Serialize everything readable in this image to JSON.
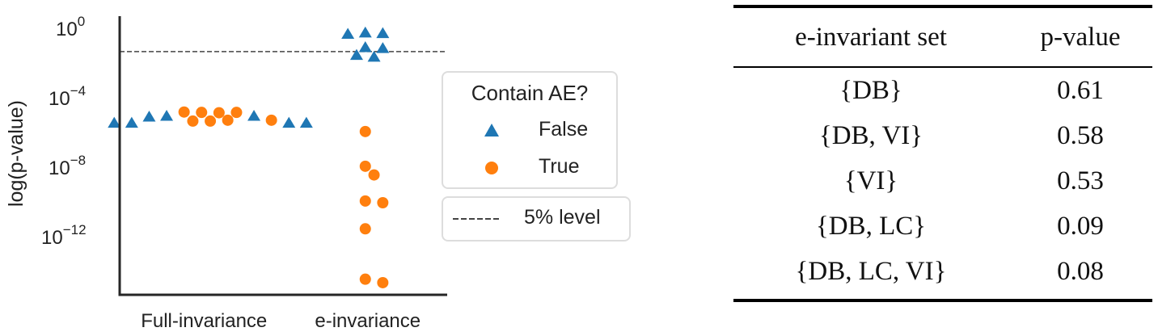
{
  "chart_data": [
    {
      "type": "scatter",
      "subtype": "swarm",
      "ylabel": "log(p-value)",
      "yscale": "log",
      "ylim_log10": [
        -15.3,
        0.74
      ],
      "yticks": [
        {
          "exp": 0,
          "base": "10",
          "sup": "0"
        },
        {
          "exp": -4,
          "base": "10",
          "sup": "−4"
        },
        {
          "exp": -8,
          "base": "10",
          "sup": "−8"
        },
        {
          "exp": -12,
          "base": "10",
          "sup": "−12"
        }
      ],
      "categories": [
        "Full-invariance",
        "e-invariance"
      ],
      "hue_title": "Contain AE?",
      "hue_levels": [
        {
          "label": "False",
          "marker": "triangle",
          "color": "#1f77b4"
        },
        {
          "label": "True",
          "marker": "circle",
          "color": "#ff7f0e"
        }
      ],
      "reference_line": {
        "value": 0.05,
        "label": "5% level",
        "style": "dashed",
        "color": "#444444"
      },
      "points": [
        {
          "category": "Full-invariance",
          "contain_ae": "True",
          "log10_p": -4.8
        },
        {
          "category": "Full-invariance",
          "contain_ae": "True",
          "log10_p": -4.82
        },
        {
          "category": "Full-invariance",
          "contain_ae": "True",
          "log10_p": -4.78
        },
        {
          "category": "Full-invariance",
          "contain_ae": "True",
          "log10_p": -4.8
        },
        {
          "category": "Full-invariance",
          "contain_ae": "False",
          "log10_p": -5.0
        },
        {
          "category": "Full-invariance",
          "contain_ae": "False",
          "log10_p": -5.0
        },
        {
          "category": "Full-invariance",
          "contain_ae": "False",
          "log10_p": -5.05
        },
        {
          "category": "Full-invariance",
          "contain_ae": "True",
          "log10_p": -5.3
        },
        {
          "category": "Full-invariance",
          "contain_ae": "True",
          "log10_p": -5.3
        },
        {
          "category": "Full-invariance",
          "contain_ae": "True",
          "log10_p": -5.25
        },
        {
          "category": "Full-invariance",
          "contain_ae": "True",
          "log10_p": -5.25
        },
        {
          "category": "Full-invariance",
          "contain_ae": "False",
          "log10_p": -5.4
        },
        {
          "category": "Full-invariance",
          "contain_ae": "False",
          "log10_p": -5.4
        },
        {
          "category": "Full-invariance",
          "contain_ae": "False",
          "log10_p": -5.4
        },
        {
          "category": "Full-invariance",
          "contain_ae": "False",
          "log10_p": -5.4
        },
        {
          "category": "e-invariance",
          "contain_ae": "False",
          "log10_p": -0.21
        },
        {
          "category": "e-invariance",
          "contain_ae": "False",
          "log10_p": -0.24
        },
        {
          "category": "e-invariance",
          "contain_ae": "False",
          "log10_p": -0.28
        },
        {
          "category": "e-invariance",
          "contain_ae": "False",
          "log10_p": -1.05
        },
        {
          "category": "e-invariance",
          "contain_ae": "False",
          "log10_p": -1.1
        },
        {
          "category": "e-invariance",
          "contain_ae": "False",
          "log10_p": -1.5
        },
        {
          "category": "e-invariance",
          "contain_ae": "False",
          "log10_p": -1.6
        },
        {
          "category": "e-invariance",
          "contain_ae": "True",
          "log10_p": -5.9
        },
        {
          "category": "e-invariance",
          "contain_ae": "True",
          "log10_p": -7.9
        },
        {
          "category": "e-invariance",
          "contain_ae": "True",
          "log10_p": -8.4
        },
        {
          "category": "e-invariance",
          "contain_ae": "True",
          "log10_p": -9.9
        },
        {
          "category": "e-invariance",
          "contain_ae": "True",
          "log10_p": -10.0
        },
        {
          "category": "e-invariance",
          "contain_ae": "True",
          "log10_p": -11.5
        },
        {
          "category": "e-invariance",
          "contain_ae": "True",
          "log10_p": -14.4
        },
        {
          "category": "e-invariance",
          "contain_ae": "True",
          "log10_p": -14.6
        }
      ],
      "grid": false,
      "legend_placement": "right"
    },
    {
      "type": "table",
      "columns": [
        "e-invariant set",
        "p-value"
      ],
      "rows": [
        [
          "{DB}",
          "0.61"
        ],
        [
          "{DB, VI}",
          "0.58"
        ],
        [
          "{VI}",
          "0.53"
        ],
        [
          "{DB, LC}",
          "0.09"
        ],
        [
          "{DB, LC, VI}",
          "0.08"
        ]
      ]
    }
  ]
}
